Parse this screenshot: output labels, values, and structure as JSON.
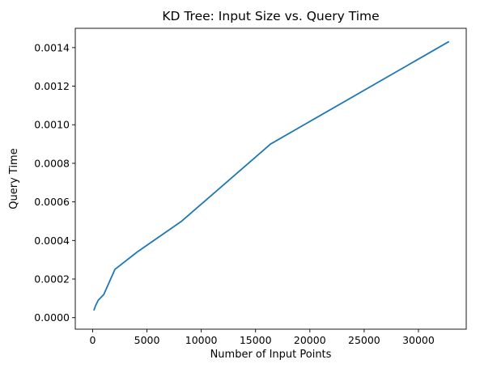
{
  "chart_data": {
    "type": "line",
    "title": "KD Tree: Input Size vs. Query Time",
    "xlabel": "Number of Input Points",
    "ylabel": "Query Time",
    "xlim": [
      -1600,
      34400
    ],
    "ylim": [
      -6e-05,
      0.0015
    ],
    "xticks": [
      0,
      5000,
      10000,
      15000,
      20000,
      25000,
      30000
    ],
    "xtick_labels": [
      "0",
      "5000",
      "10000",
      "15000",
      "20000",
      "25000",
      "30000"
    ],
    "yticks": [
      0.0,
      0.0002,
      0.0004,
      0.0006,
      0.0008,
      0.001,
      0.0012,
      0.0014
    ],
    "ytick_labels": [
      "0.0000",
      "0.0002",
      "0.0004",
      "0.0006",
      "0.0008",
      "0.0010",
      "0.0012",
      "0.0014"
    ],
    "grid": false,
    "series": [
      {
        "color": "#1f77b4",
        "x": [
          128,
          256,
          512,
          1024,
          2048,
          4096,
          8192,
          16384,
          32768
        ],
        "y": [
          4e-05,
          6e-05,
          9e-05,
          0.00012,
          0.00025,
          0.00034,
          0.0005,
          0.0009,
          0.00143
        ]
      }
    ]
  }
}
